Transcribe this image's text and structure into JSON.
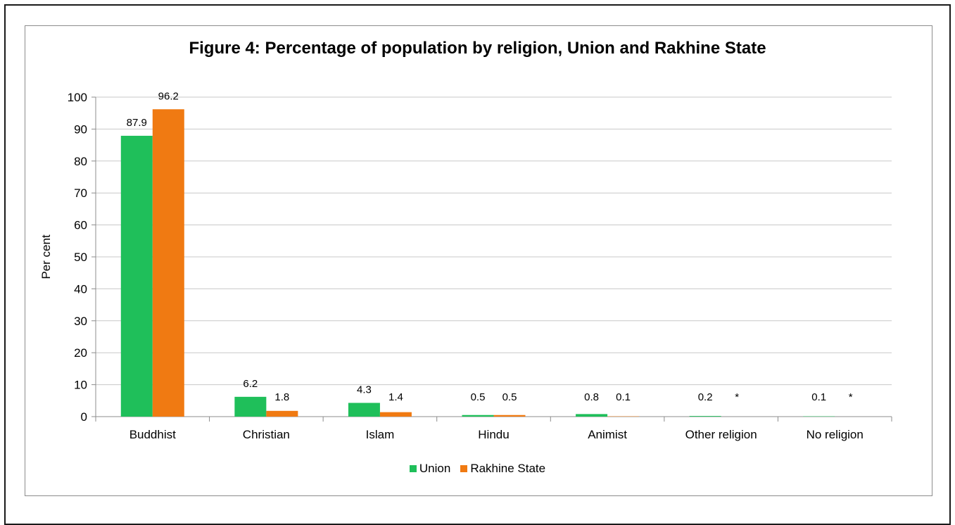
{
  "chart_data": {
    "type": "bar",
    "title": "Figure 4: Percentage of population by religion, Union and Rakhine State",
    "ylabel": "Per cent",
    "xlabel": "",
    "ylim": [
      0,
      100
    ],
    "yticks": [
      "0",
      "10",
      "20",
      "30",
      "40",
      "50",
      "60",
      "70",
      "80",
      "90",
      "100"
    ],
    "grid": true,
    "legend_position": "bottom",
    "categories": [
      "Buddhist",
      "Christian",
      "Islam",
      "Hindu",
      "Animist",
      "Other religion",
      "No religion"
    ],
    "series": [
      {
        "name": "Union",
        "color": "#1fbf5a",
        "values": [
          87.9,
          6.2,
          4.3,
          0.5,
          0.8,
          0.2,
          0.1
        ],
        "labels": [
          "87.9",
          "6.2",
          "4.3",
          "0.5",
          "0.8",
          "0.2",
          "0.1"
        ]
      },
      {
        "name": "Rakhine State",
        "color": "#f07a12",
        "values": [
          96.2,
          1.8,
          1.4,
          0.5,
          0.1,
          0,
          0
        ],
        "labels": [
          "96.2",
          "1.8",
          "1.4",
          "0.5",
          "0.1",
          "*",
          "*"
        ]
      }
    ]
  }
}
